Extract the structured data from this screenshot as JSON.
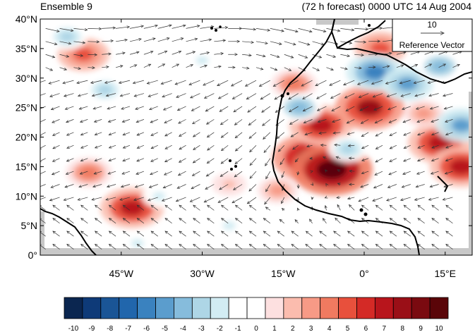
{
  "title_left": "Ensemble 9",
  "title_right": "(72 h forecast) 0000 UTC 14 Aug 2004",
  "reference_vector": {
    "value": "10",
    "label": "Reference Vector"
  },
  "map": {
    "lon_range": [
      -60,
      20
    ],
    "lat_range": [
      0,
      40
    ],
    "lat_labels": [
      "40°N",
      "35°N",
      "30°N",
      "25°N",
      "20°N",
      "15°N",
      "10°N",
      "5°N",
      "0°"
    ],
    "lat_values": [
      40,
      35,
      30,
      25,
      20,
      15,
      10,
      5,
      0
    ],
    "lon_labels": [
      "45°W",
      "30°W",
      "15°W",
      "0°",
      "15°E"
    ],
    "lon_values": [
      -45,
      -30,
      -15,
      0,
      15
    ],
    "colors": {
      "land_outline": "#000000",
      "missing": "#c8c8c8"
    },
    "anomalies": [
      {
        "lon": -52,
        "lat": 34,
        "v": 5
      },
      {
        "lon": -43,
        "lat": 8,
        "v": 7
      },
      {
        "lon": -51,
        "lat": 14,
        "v": 4
      },
      {
        "lon": -10,
        "lat": 16.5,
        "v": 9
      },
      {
        "lon": -6,
        "lat": 14.5,
        "v": 10
      },
      {
        "lon": -8,
        "lat": 22,
        "v": 7
      },
      {
        "lon": 1,
        "lat": 25,
        "v": 8
      },
      {
        "lon": 3,
        "lat": 35,
        "v": 5
      },
      {
        "lon": 14,
        "lat": 19,
        "v": 7
      },
      {
        "lon": 18,
        "lat": 15,
        "v": 7
      },
      {
        "lon": -16,
        "lat": 11,
        "v": 3
      },
      {
        "lon": -25,
        "lat": 12,
        "v": 2
      },
      {
        "lon": -13,
        "lat": 29,
        "v": 4
      },
      {
        "lon": 11,
        "lat": 24,
        "v": 3
      },
      {
        "lon": 2,
        "lat": 31,
        "v": -6
      },
      {
        "lon": 8,
        "lat": 29,
        "v": -5
      },
      {
        "lon": 14,
        "lat": 32,
        "v": -4
      },
      {
        "lon": -12,
        "lat": 25,
        "v": -4
      },
      {
        "lon": -48,
        "lat": 28,
        "v": -3
      },
      {
        "lon": -55,
        "lat": 37,
        "v": -3
      },
      {
        "lon": -30,
        "lat": 33,
        "v": -2
      },
      {
        "lon": -38,
        "lat": 10,
        "v": -2
      },
      {
        "lon": -42,
        "lat": 2,
        "v": -2
      },
      {
        "lon": -25,
        "lat": 5,
        "v": -2
      },
      {
        "lon": 18,
        "lat": 22,
        "v": -5
      },
      {
        "lon": -3,
        "lat": 18,
        "v": -3
      }
    ]
  },
  "colorbar": {
    "labels": [
      "-10",
      "-9",
      "-8",
      "-7",
      "-6",
      "-5",
      "-4",
      "-3",
      "-2",
      "-1",
      "0",
      "1",
      "2",
      "3",
      "4",
      "5",
      "6",
      "7",
      "8",
      "9",
      "10"
    ],
    "colors": [
      "#0b2650",
      "#0e3a78",
      "#1a5596",
      "#2166ac",
      "#3a82bf",
      "#5b9dcd",
      "#86bcdc",
      "#aed6e6",
      "#d2ecf3",
      "#ffffff",
      "#ffffff",
      "#fde0e0",
      "#fbbcae",
      "#f79a86",
      "#f07a60",
      "#e8503c",
      "#d42a26",
      "#b8151c",
      "#9a0f17",
      "#7a0a10",
      "#5a0508"
    ]
  }
}
